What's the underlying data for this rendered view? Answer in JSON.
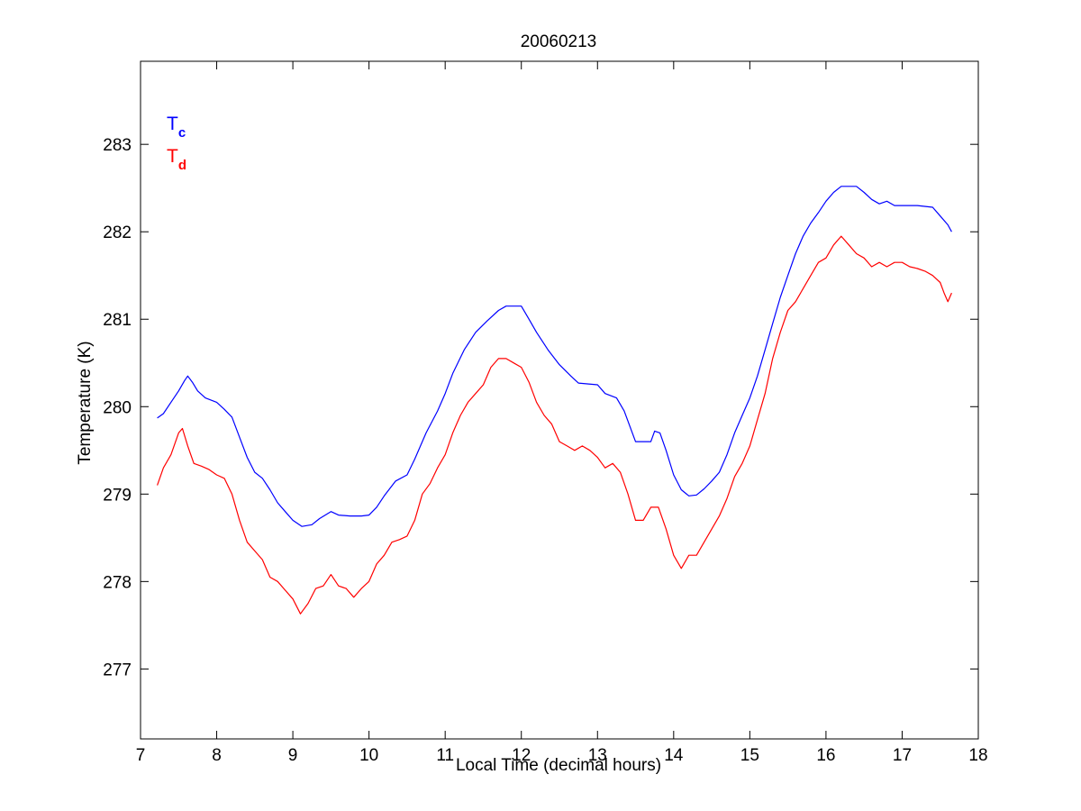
{
  "chart_data": {
    "type": "line",
    "title": "20060213",
    "xlabel": "Local Time (decimal hours)",
    "ylabel": "Temperature (K)",
    "xlim": [
      7,
      18
    ],
    "ylim": [
      276.2,
      283.95
    ],
    "xticks": [
      7,
      8,
      9,
      10,
      11,
      12,
      13,
      14,
      15,
      16,
      17,
      18
    ],
    "yticks": [
      277,
      278,
      279,
      280,
      281,
      282,
      283
    ],
    "grid": false,
    "legend": {
      "placement": "top-left",
      "entries": [
        {
          "main": "T",
          "sub": "c",
          "color": "#0000ff"
        },
        {
          "main": "T",
          "sub": "d",
          "color": "#ff0000"
        }
      ]
    },
    "series": [
      {
        "color": "#0000ff",
        "points": [
          [
            7.22,
            279.87
          ],
          [
            7.3,
            279.92
          ],
          [
            7.4,
            280.05
          ],
          [
            7.5,
            280.18
          ],
          [
            7.58,
            280.3
          ],
          [
            7.62,
            280.35
          ],
          [
            7.68,
            280.28
          ],
          [
            7.75,
            280.18
          ],
          [
            7.85,
            280.1
          ],
          [
            8.0,
            280.05
          ],
          [
            8.1,
            279.97
          ],
          [
            8.2,
            279.88
          ],
          [
            8.3,
            279.65
          ],
          [
            8.4,
            279.42
          ],
          [
            8.5,
            279.25
          ],
          [
            8.6,
            279.18
          ],
          [
            8.7,
            279.05
          ],
          [
            8.8,
            278.9
          ],
          [
            8.9,
            278.8
          ],
          [
            9.0,
            278.7
          ],
          [
            9.12,
            278.63
          ],
          [
            9.25,
            278.65
          ],
          [
            9.35,
            278.72
          ],
          [
            9.5,
            278.8
          ],
          [
            9.6,
            278.76
          ],
          [
            9.75,
            278.75
          ],
          [
            9.9,
            278.75
          ],
          [
            10.0,
            278.76
          ],
          [
            10.1,
            278.85
          ],
          [
            10.2,
            278.98
          ],
          [
            10.35,
            279.15
          ],
          [
            10.5,
            279.22
          ],
          [
            10.6,
            279.4
          ],
          [
            10.75,
            279.7
          ],
          [
            10.9,
            279.95
          ],
          [
            11.0,
            280.15
          ],
          [
            11.1,
            280.38
          ],
          [
            11.25,
            280.65
          ],
          [
            11.4,
            280.85
          ],
          [
            11.55,
            280.98
          ],
          [
            11.7,
            281.1
          ],
          [
            11.8,
            281.15
          ],
          [
            12.0,
            281.15
          ],
          [
            12.1,
            281.0
          ],
          [
            12.2,
            280.85
          ],
          [
            12.35,
            280.65
          ],
          [
            12.5,
            280.48
          ],
          [
            12.65,
            280.35
          ],
          [
            12.75,
            280.27
          ],
          [
            13.0,
            280.25
          ],
          [
            13.1,
            280.15
          ],
          [
            13.25,
            280.1
          ],
          [
            13.35,
            279.95
          ],
          [
            13.5,
            279.6
          ],
          [
            13.7,
            279.6
          ],
          [
            13.75,
            279.72
          ],
          [
            13.82,
            279.7
          ],
          [
            13.9,
            279.5
          ],
          [
            14.0,
            279.22
          ],
          [
            14.1,
            279.05
          ],
          [
            14.2,
            278.98
          ],
          [
            14.3,
            278.99
          ],
          [
            14.4,
            279.06
          ],
          [
            14.5,
            279.15
          ],
          [
            14.6,
            279.25
          ],
          [
            14.7,
            279.45
          ],
          [
            14.8,
            279.7
          ],
          [
            14.9,
            279.9
          ],
          [
            15.0,
            280.1
          ],
          [
            15.1,
            280.35
          ],
          [
            15.2,
            280.65
          ],
          [
            15.3,
            280.95
          ],
          [
            15.4,
            281.25
          ],
          [
            15.5,
            281.5
          ],
          [
            15.6,
            281.75
          ],
          [
            15.7,
            281.95
          ],
          [
            15.8,
            282.1
          ],
          [
            15.9,
            282.22
          ],
          [
            16.0,
            282.35
          ],
          [
            16.1,
            282.45
          ],
          [
            16.2,
            282.52
          ],
          [
            16.4,
            282.52
          ],
          [
            16.5,
            282.45
          ],
          [
            16.6,
            282.37
          ],
          [
            16.7,
            282.32
          ],
          [
            16.8,
            282.35
          ],
          [
            16.9,
            282.3
          ],
          [
            17.0,
            282.3
          ],
          [
            17.2,
            282.3
          ],
          [
            17.4,
            282.28
          ],
          [
            17.5,
            282.18
          ],
          [
            17.6,
            282.08
          ],
          [
            17.65,
            282.0
          ]
        ]
      },
      {
        "color": "#ff0000",
        "points": [
          [
            7.22,
            279.1
          ],
          [
            7.3,
            279.3
          ],
          [
            7.4,
            279.45
          ],
          [
            7.5,
            279.7
          ],
          [
            7.55,
            279.75
          ],
          [
            7.62,
            279.55
          ],
          [
            7.7,
            279.35
          ],
          [
            7.8,
            279.32
          ],
          [
            7.9,
            279.28
          ],
          [
            8.0,
            279.22
          ],
          [
            8.1,
            279.18
          ],
          [
            8.2,
            279.0
          ],
          [
            8.3,
            278.7
          ],
          [
            8.4,
            278.45
          ],
          [
            8.5,
            278.35
          ],
          [
            8.6,
            278.25
          ],
          [
            8.7,
            278.05
          ],
          [
            8.8,
            278.0
          ],
          [
            8.9,
            277.9
          ],
          [
            9.0,
            277.8
          ],
          [
            9.1,
            277.63
          ],
          [
            9.2,
            277.75
          ],
          [
            9.3,
            277.92
          ],
          [
            9.4,
            277.95
          ],
          [
            9.5,
            278.08
          ],
          [
            9.6,
            277.95
          ],
          [
            9.7,
            277.92
          ],
          [
            9.8,
            277.82
          ],
          [
            9.9,
            277.92
          ],
          [
            10.0,
            278.0
          ],
          [
            10.1,
            278.2
          ],
          [
            10.2,
            278.3
          ],
          [
            10.3,
            278.45
          ],
          [
            10.4,
            278.48
          ],
          [
            10.5,
            278.52
          ],
          [
            10.6,
            278.7
          ],
          [
            10.7,
            279.0
          ],
          [
            10.8,
            279.12
          ],
          [
            10.9,
            279.3
          ],
          [
            11.0,
            279.45
          ],
          [
            11.1,
            279.7
          ],
          [
            11.2,
            279.9
          ],
          [
            11.3,
            280.05
          ],
          [
            11.4,
            280.15
          ],
          [
            11.5,
            280.25
          ],
          [
            11.6,
            280.45
          ],
          [
            11.7,
            280.55
          ],
          [
            11.8,
            280.55
          ],
          [
            11.9,
            280.5
          ],
          [
            12.0,
            280.45
          ],
          [
            12.1,
            280.28
          ],
          [
            12.2,
            280.05
          ],
          [
            12.3,
            279.9
          ],
          [
            12.4,
            279.8
          ],
          [
            12.5,
            279.6
          ],
          [
            12.6,
            279.55
          ],
          [
            12.7,
            279.5
          ],
          [
            12.8,
            279.55
          ],
          [
            12.9,
            279.5
          ],
          [
            13.0,
            279.42
          ],
          [
            13.1,
            279.3
          ],
          [
            13.2,
            279.35
          ],
          [
            13.3,
            279.25
          ],
          [
            13.4,
            279.0
          ],
          [
            13.5,
            278.7
          ],
          [
            13.6,
            278.7
          ],
          [
            13.7,
            278.85
          ],
          [
            13.8,
            278.85
          ],
          [
            13.9,
            278.6
          ],
          [
            14.0,
            278.3
          ],
          [
            14.1,
            278.15
          ],
          [
            14.2,
            278.3
          ],
          [
            14.3,
            278.3
          ],
          [
            14.4,
            278.45
          ],
          [
            14.5,
            278.6
          ],
          [
            14.6,
            278.75
          ],
          [
            14.7,
            278.95
          ],
          [
            14.8,
            279.2
          ],
          [
            14.9,
            279.35
          ],
          [
            15.0,
            279.55
          ],
          [
            15.1,
            279.85
          ],
          [
            15.2,
            280.15
          ],
          [
            15.3,
            280.55
          ],
          [
            15.4,
            280.85
          ],
          [
            15.5,
            281.1
          ],
          [
            15.6,
            281.2
          ],
          [
            15.7,
            281.35
          ],
          [
            15.8,
            281.5
          ],
          [
            15.9,
            281.65
          ],
          [
            16.0,
            281.7
          ],
          [
            16.1,
            281.85
          ],
          [
            16.2,
            281.95
          ],
          [
            16.3,
            281.85
          ],
          [
            16.4,
            281.75
          ],
          [
            16.5,
            281.7
          ],
          [
            16.6,
            281.6
          ],
          [
            16.7,
            281.65
          ],
          [
            16.8,
            281.6
          ],
          [
            16.9,
            281.65
          ],
          [
            17.0,
            281.65
          ],
          [
            17.1,
            281.6
          ],
          [
            17.2,
            281.58
          ],
          [
            17.3,
            281.55
          ],
          [
            17.4,
            281.5
          ],
          [
            17.5,
            281.42
          ],
          [
            17.55,
            281.3
          ],
          [
            17.6,
            281.2
          ],
          [
            17.65,
            281.3
          ]
        ]
      }
    ]
  }
}
